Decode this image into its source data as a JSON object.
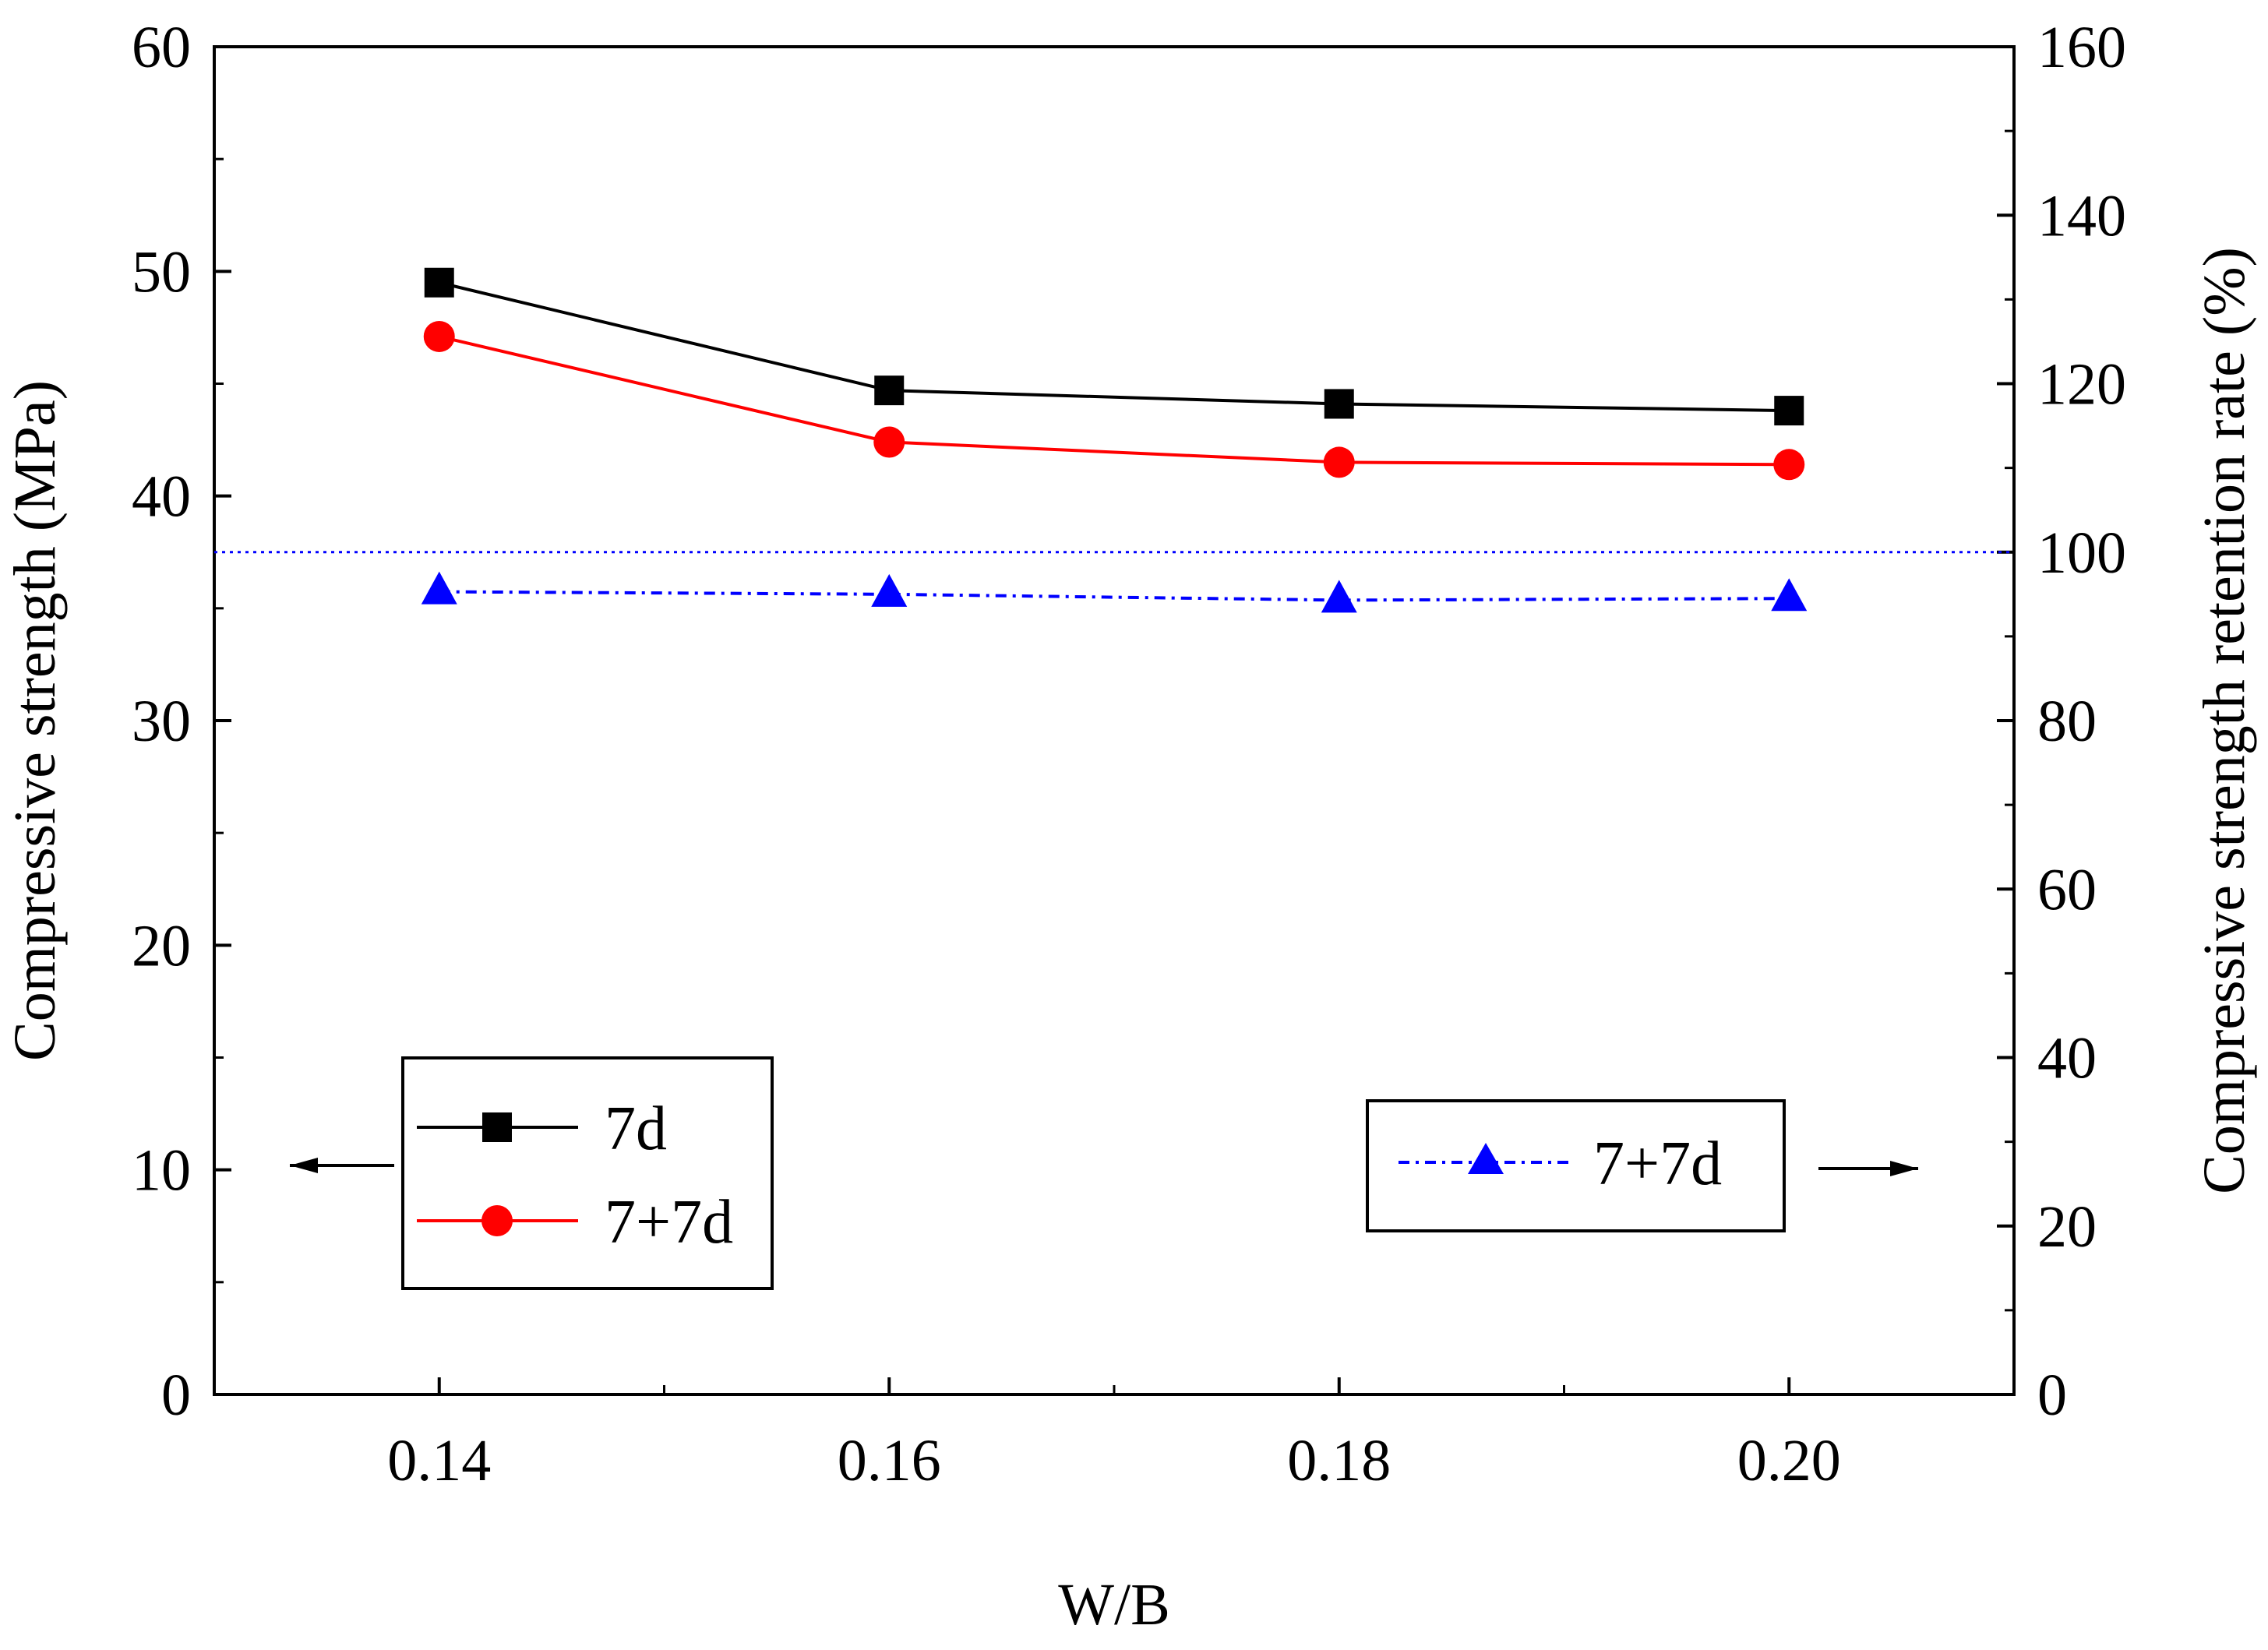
{
  "chart_data": {
    "type": "line",
    "xlabel": "W/B",
    "ylabel_left": "Compressive strength (MPa)",
    "ylabel_right": "Compressive strength retention rate (%)",
    "xlim": [
      0.13,
      0.21
    ],
    "ylim_left": [
      0,
      60
    ],
    "ylim_right": [
      0,
      160
    ],
    "x_ticks": [
      "0.14",
      "0.16",
      "0.18",
      "0.20"
    ],
    "x_tick_values": [
      0.14,
      0.16,
      0.18,
      0.2
    ],
    "y_left_ticks": [
      "0",
      "10",
      "20",
      "30",
      "40",
      "50",
      "60"
    ],
    "y_left_tick_values": [
      0,
      10,
      20,
      30,
      40,
      50,
      60
    ],
    "y_right_ticks": [
      "0",
      "20",
      "40",
      "60",
      "80",
      "100",
      "120",
      "140",
      "160"
    ],
    "y_right_tick_values": [
      0,
      20,
      40,
      60,
      80,
      100,
      120,
      140,
      160
    ],
    "x": [
      0.14,
      0.16,
      0.18,
      0.2
    ],
    "series": [
      {
        "name": "7d",
        "axis": "left",
        "values": [
          49.5,
          44.7,
          44.1,
          43.8
        ],
        "color": "#000000",
        "marker": "square",
        "line": "solid"
      },
      {
        "name": "7+7d",
        "axis": "left",
        "values": [
          47.1,
          42.4,
          41.5,
          41.4
        ],
        "color": "#ff0000",
        "marker": "circle",
        "line": "solid"
      },
      {
        "name": "7+7d",
        "axis": "right",
        "values": [
          95.3,
          95.0,
          94.3,
          94.5
        ],
        "color": "#0000ff",
        "marker": "triangle",
        "line": "dash-dot"
      }
    ],
    "reference_line": {
      "axis": "right",
      "value": 100,
      "color": "#0000ff",
      "line": "dotted"
    },
    "legend_left": {
      "entries": [
        "7d",
        "7+7d"
      ],
      "points_to": "left axis"
    },
    "legend_right": {
      "entries": [
        "7+7d"
      ],
      "points_to": "right axis"
    },
    "grid": false
  }
}
